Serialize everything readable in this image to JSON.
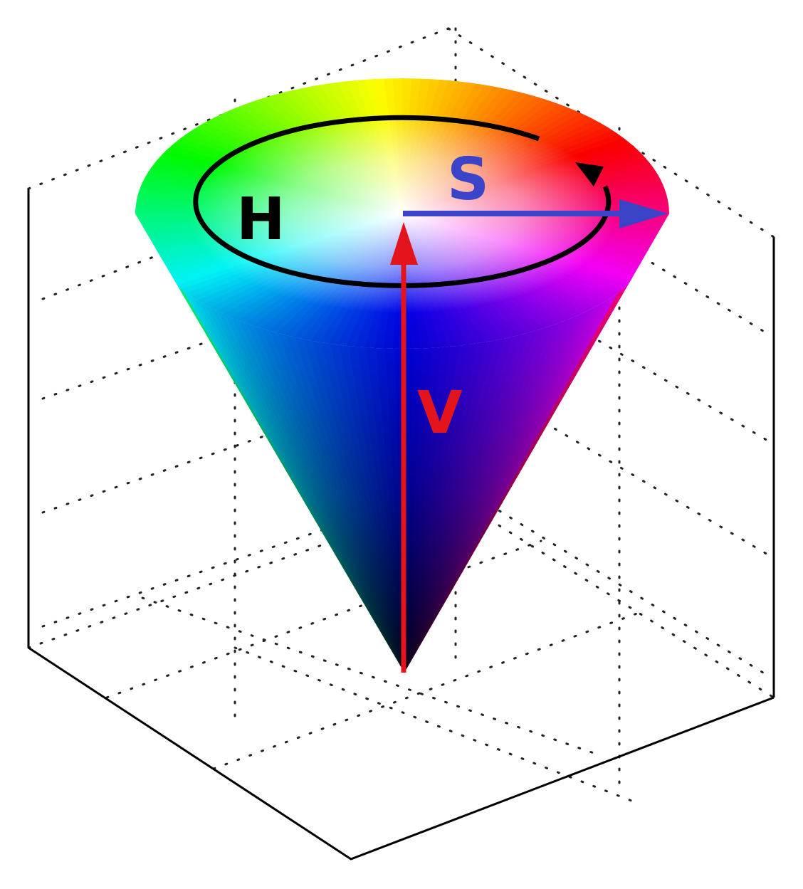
{
  "labels": {
    "hue": "H",
    "saturation": "S",
    "value": "V"
  },
  "colors": {
    "hue_label": "#000000",
    "saturation_arrow": "#3b44c8",
    "value_arrow": "#e3141c",
    "axes": "#000000",
    "background": "#ffffff"
  },
  "hue_wheel": [
    "#ff0000",
    "#ff00ff",
    "#0000ff",
    "#00ffff",
    "#00ff00",
    "#ffff00",
    "#ff0000"
  ]
}
